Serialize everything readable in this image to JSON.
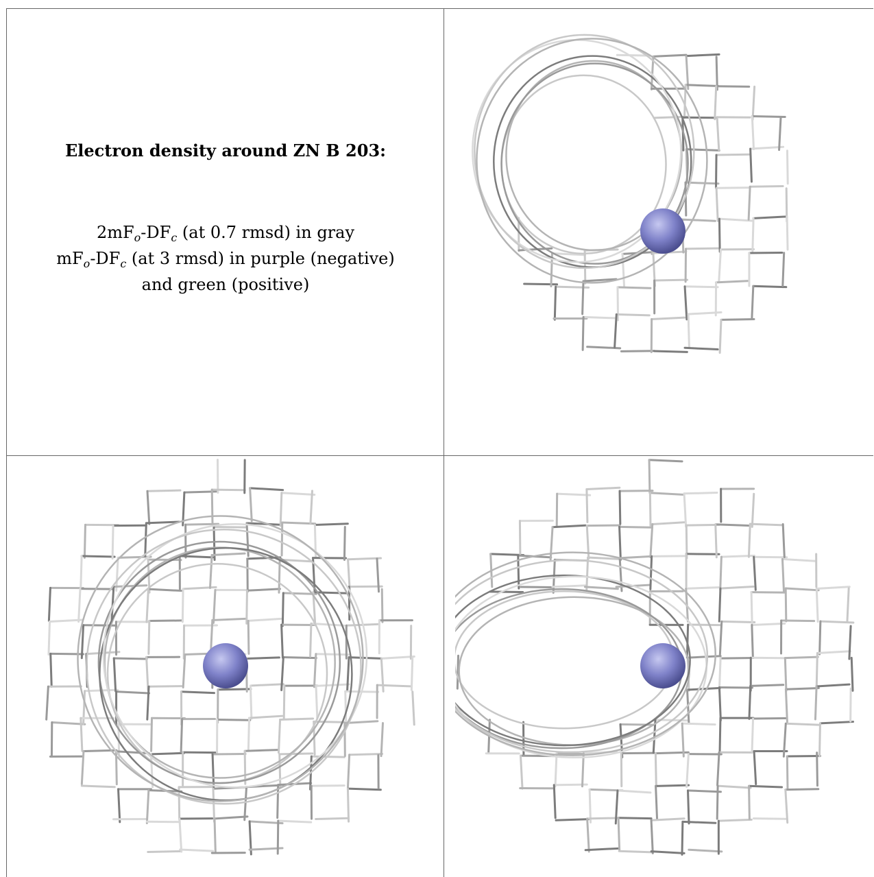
{
  "caption": {
    "title": "Electron density around ZN B 203:",
    "line1_prefix": "2mF",
    "line1_sub1": "o",
    "line1_mid": "-DF",
    "line1_sub2": "c",
    "line1_suffix": " (at 0.7 rmsd) in gray",
    "line2_prefix": "mF",
    "line2_sub1": "o",
    "line2_mid": "-DF",
    "line2_sub2": "c",
    "line2_suffix": " (at 3 rmsd) in purple (negative)",
    "line3": "and green (positive)"
  },
  "views": [
    {
      "name": "view-top-right",
      "mesh_color": "#9a9a9a",
      "atom_color": "#7f82c9"
    },
    {
      "name": "view-bottom-left",
      "mesh_color": "#9a9a9a",
      "atom_color": "#7f82c9"
    },
    {
      "name": "view-bottom-right",
      "mesh_color": "#9a9a9a",
      "atom_color": "#7f82c9"
    }
  ]
}
